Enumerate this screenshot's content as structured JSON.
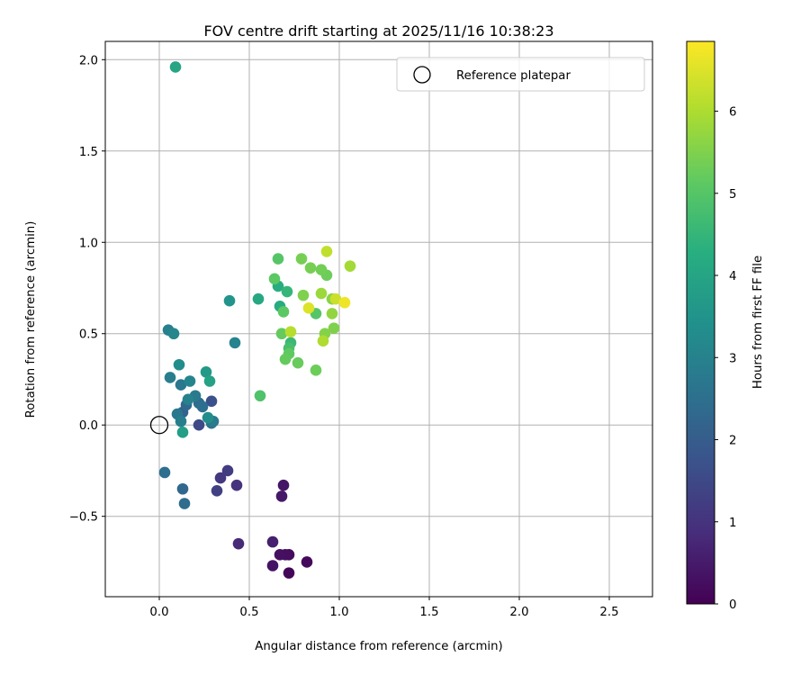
{
  "chart_data": {
    "type": "scatter",
    "title": "FOV centre drift starting at 2025/11/16 10:38:23",
    "xlabel": "Angular distance from reference (arcmin)",
    "ylabel": "Rotation from reference (arcmin)",
    "xlim": [
      -0.3,
      2.74
    ],
    "ylim": [
      -0.94,
      2.1
    ],
    "x_ticks": [
      "0.0",
      "0.5",
      "1.0",
      "1.5",
      "2.0",
      "2.5"
    ],
    "y_ticks": [
      "−0.5",
      "0.0",
      "0.5",
      "1.0",
      "1.5",
      "2.0"
    ],
    "grid": true,
    "legend": {
      "position": "top-right",
      "entries": [
        "Reference platepar"
      ]
    },
    "reference_point": {
      "x": 0.0,
      "y": 0.0
    },
    "colorbar": {
      "label": "Hours from first FF file",
      "colormap": "viridis",
      "range": [
        0,
        6.85
      ],
      "ticks": [
        "0",
        "1",
        "2",
        "3",
        "4",
        "5",
        "6"
      ]
    },
    "points": [
      {
        "x": 0.72,
        "y": -0.81,
        "h": 0.1
      },
      {
        "x": 0.82,
        "y": -0.75,
        "h": 0.15
      },
      {
        "x": 0.72,
        "y": -0.71,
        "h": 0.2
      },
      {
        "x": 0.7,
        "y": -0.71,
        "h": 0.25
      },
      {
        "x": 0.67,
        "y": -0.71,
        "h": 0.3
      },
      {
        "x": 0.63,
        "y": -0.77,
        "h": 0.35
      },
      {
        "x": 0.69,
        "y": -0.33,
        "h": 0.4
      },
      {
        "x": 0.68,
        "y": -0.39,
        "h": 0.45
      },
      {
        "x": 0.63,
        "y": -0.64,
        "h": 0.6
      },
      {
        "x": 0.44,
        "y": -0.65,
        "h": 0.8
      },
      {
        "x": 0.43,
        "y": -0.33,
        "h": 1.0
      },
      {
        "x": 0.34,
        "y": -0.29,
        "h": 1.1
      },
      {
        "x": 0.38,
        "y": -0.25,
        "h": 1.2
      },
      {
        "x": 0.32,
        "y": -0.36,
        "h": 1.3
      },
      {
        "x": 0.22,
        "y": 0.0,
        "h": 1.5
      },
      {
        "x": 0.29,
        "y": 0.13,
        "h": 1.7
      },
      {
        "x": 0.13,
        "y": -0.35,
        "h": 2.3
      },
      {
        "x": 0.14,
        "y": -0.43,
        "h": 2.4
      },
      {
        "x": 0.03,
        "y": -0.26,
        "h": 2.5
      },
      {
        "x": 0.13,
        "y": 0.07,
        "h": 2.2
      },
      {
        "x": 0.15,
        "y": 0.11,
        "h": 2.3
      },
      {
        "x": 0.22,
        "y": 0.12,
        "h": 2.4
      },
      {
        "x": 0.24,
        "y": 0.1,
        "h": 2.5
      },
      {
        "x": 0.29,
        "y": 0.01,
        "h": 2.6
      },
      {
        "x": 0.3,
        "y": 0.02,
        "h": 2.8
      },
      {
        "x": 0.1,
        "y": 0.06,
        "h": 2.7
      },
      {
        "x": 0.12,
        "y": 0.02,
        "h": 2.9
      },
      {
        "x": 0.2,
        "y": 0.16,
        "h": 2.8
      },
      {
        "x": 0.16,
        "y": 0.14,
        "h": 3.0
      },
      {
        "x": 0.06,
        "y": 0.26,
        "h": 2.9
      },
      {
        "x": 0.12,
        "y": 0.22,
        "h": 2.7
      },
      {
        "x": 0.17,
        "y": 0.24,
        "h": 3.1
      },
      {
        "x": 0.05,
        "y": 0.52,
        "h": 2.95
      },
      {
        "x": 0.08,
        "y": 0.5,
        "h": 3.15
      },
      {
        "x": 0.42,
        "y": 0.45,
        "h": 3.05
      },
      {
        "x": 0.11,
        "y": 0.33,
        "h": 3.3
      },
      {
        "x": 0.27,
        "y": 0.04,
        "h": 3.35
      },
      {
        "x": 0.13,
        "y": -0.04,
        "h": 3.8
      },
      {
        "x": 0.26,
        "y": 0.29,
        "h": 3.7
      },
      {
        "x": 0.28,
        "y": 0.24,
        "h": 3.9
      },
      {
        "x": 0.39,
        "y": 0.68,
        "h": 3.5
      },
      {
        "x": 0.09,
        "y": 1.96,
        "h": 4.0
      },
      {
        "x": 0.55,
        "y": 0.69,
        "h": 4.1
      },
      {
        "x": 0.67,
        "y": 0.65,
        "h": 4.2
      },
      {
        "x": 0.66,
        "y": 0.76,
        "h": 4.25
      },
      {
        "x": 0.71,
        "y": 0.73,
        "h": 4.5
      },
      {
        "x": 0.73,
        "y": 0.45,
        "h": 4.6
      },
      {
        "x": 0.72,
        "y": 0.42,
        "h": 4.8
      },
      {
        "x": 0.56,
        "y": 0.16,
        "h": 4.9
      },
      {
        "x": 0.66,
        "y": 0.91,
        "h": 5.0
      },
      {
        "x": 0.87,
        "y": 0.61,
        "h": 5.0
      },
      {
        "x": 0.64,
        "y": 0.8,
        "h": 5.1
      },
      {
        "x": 0.69,
        "y": 0.62,
        "h": 5.1
      },
      {
        "x": 0.72,
        "y": 0.39,
        "h": 5.15
      },
      {
        "x": 0.68,
        "y": 0.5,
        "h": 5.2
      },
      {
        "x": 0.7,
        "y": 0.36,
        "h": 5.2
      },
      {
        "x": 0.77,
        "y": 0.34,
        "h": 5.25
      },
      {
        "x": 0.87,
        "y": 0.3,
        "h": 5.3
      },
      {
        "x": 0.93,
        "y": 0.82,
        "h": 5.3
      },
      {
        "x": 0.9,
        "y": 0.85,
        "h": 5.35
      },
      {
        "x": 0.84,
        "y": 0.86,
        "h": 5.4
      },
      {
        "x": 0.79,
        "y": 0.91,
        "h": 5.4
      },
      {
        "x": 0.8,
        "y": 0.71,
        "h": 5.5
      },
      {
        "x": 0.97,
        "y": 0.53,
        "h": 5.5
      },
      {
        "x": 0.92,
        "y": 0.5,
        "h": 5.55
      },
      {
        "x": 0.96,
        "y": 0.69,
        "h": 5.6
      },
      {
        "x": 0.96,
        "y": 0.61,
        "h": 5.7
      },
      {
        "x": 0.9,
        "y": 0.72,
        "h": 5.8
      },
      {
        "x": 1.06,
        "y": 0.87,
        "h": 5.9
      },
      {
        "x": 0.91,
        "y": 0.46,
        "h": 6.0
      },
      {
        "x": 0.73,
        "y": 0.51,
        "h": 6.1
      },
      {
        "x": 0.93,
        "y": 0.95,
        "h": 6.2
      },
      {
        "x": 0.98,
        "y": 0.69,
        "h": 6.3
      },
      {
        "x": 0.83,
        "y": 0.64,
        "h": 6.5
      },
      {
        "x": 1.03,
        "y": 0.67,
        "h": 6.7
      }
    ]
  }
}
